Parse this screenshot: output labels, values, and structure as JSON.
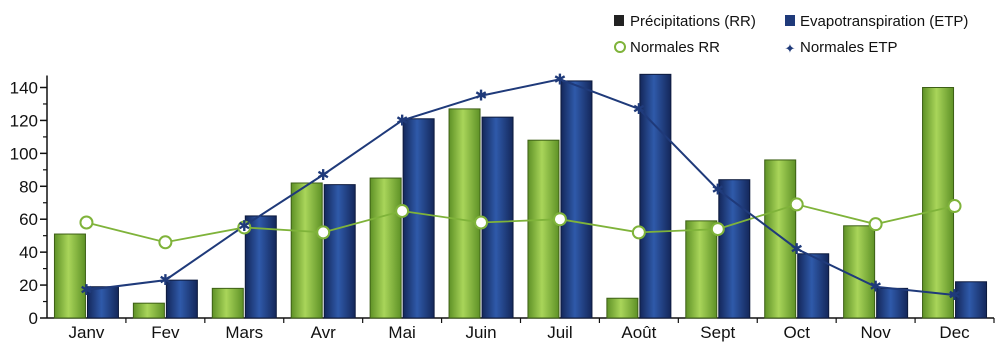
{
  "chart_data": {
    "type": "bar",
    "categories": [
      "Janv",
      "Fev",
      "Mars",
      "Avr",
      "Mai",
      "Juin",
      "Juil",
      "Août",
      "Sept",
      "Oct",
      "Nov",
      "Dec"
    ],
    "series": [
      {
        "name": "Précipitations (RR)",
        "kind": "bar",
        "color": "#7fb33a",
        "values": [
          51,
          9,
          18,
          82,
          85,
          127,
          108,
          12,
          59,
          96,
          56,
          140
        ]
      },
      {
        "name": "Evapotranspiration (ETP)",
        "kind": "bar",
        "color": "#1f3a7a",
        "values": [
          19,
          23,
          62,
          81,
          121,
          122,
          144,
          148,
          84,
          39,
          18,
          22
        ]
      },
      {
        "name": "Normales RR",
        "kind": "line",
        "color": "#7fb33a",
        "marker": "circle",
        "values": [
          58,
          46,
          55,
          52,
          65,
          58,
          60,
          52,
          54,
          69,
          57,
          68
        ]
      },
      {
        "name": "Normales ETP",
        "kind": "line",
        "color": "#1f3a7a",
        "marker": "star",
        "values": [
          17,
          23,
          56,
          87,
          120,
          135,
          145,
          127,
          78,
          42,
          19,
          14
        ]
      }
    ],
    "yticks": [
      0,
      20,
      40,
      60,
      80,
      100,
      120,
      140
    ],
    "ylim": [
      0,
      150
    ],
    "grid": false,
    "legend_position": "top-right"
  }
}
